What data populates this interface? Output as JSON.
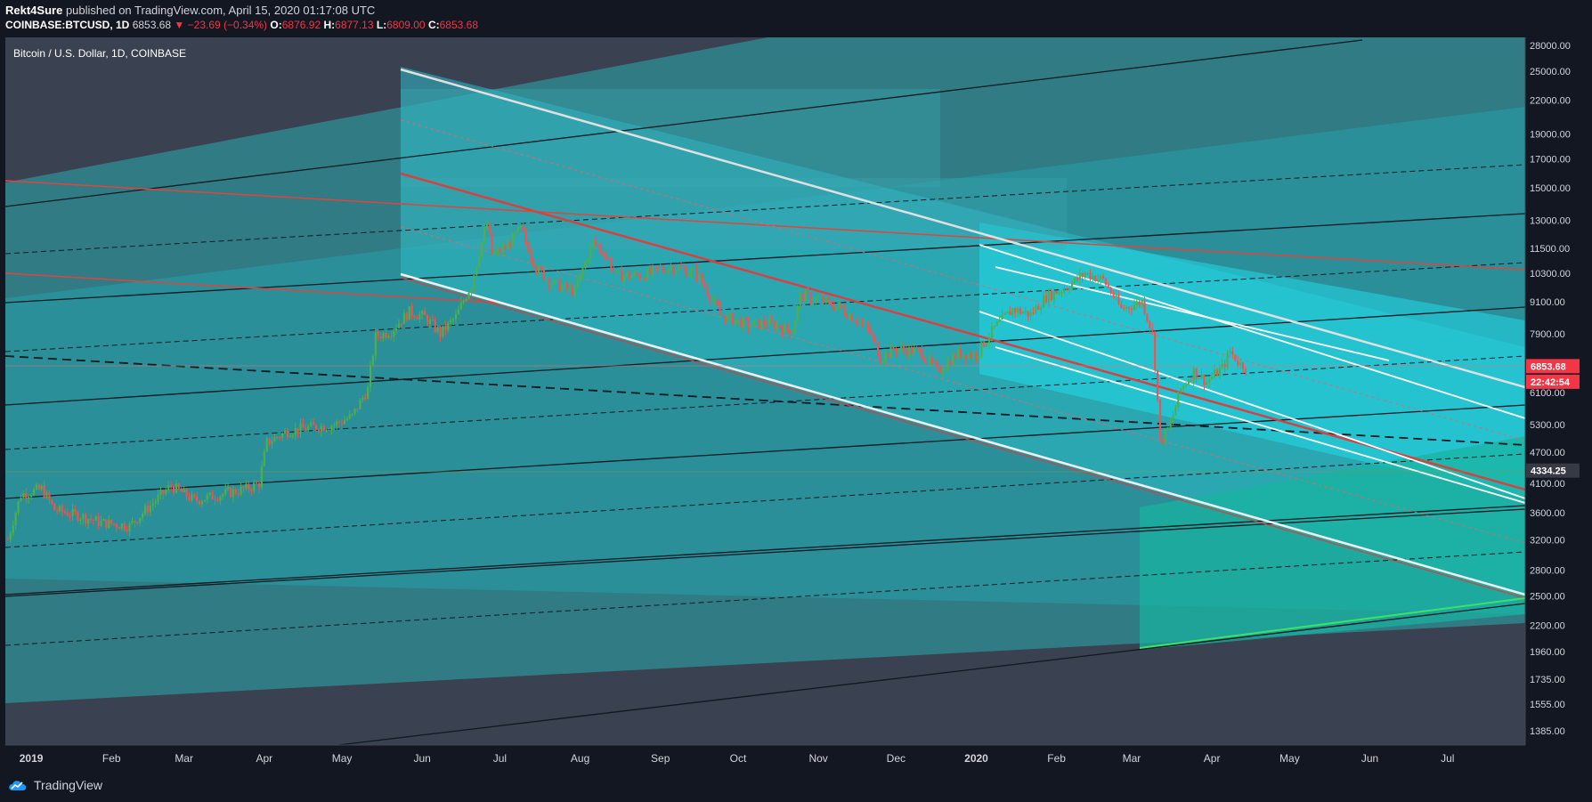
{
  "header": {
    "author": "Rekt4Sure",
    "published_text": "published on TradingView.com, April 15, 2020 01:17:08 UTC",
    "symbol": "COINBASE:BTCUSD, 1D",
    "last": "6853.68",
    "change": "−23.69 (−0.34%)",
    "o_label": "O:",
    "o": "6876.92",
    "h_label": "H:",
    "h": "6877.13",
    "l_label": "L:",
    "l": "6809.00",
    "c_label": "C:",
    "c": "6853.68"
  },
  "footer": {
    "brand": "TradingView"
  },
  "chart_data": {
    "type": "candlestick",
    "title": "Bitcoin / U.S. Dollar, 1D, COINBASE",
    "y_scale": "log",
    "ylim": [
      1300,
      29000
    ],
    "xlim": [
      "2018-12-22",
      "2020-07-31"
    ],
    "y_ticks": [
      28000,
      25000,
      22000,
      19000,
      17000,
      15000,
      13000,
      11500,
      10300,
      9100,
      7900,
      6100,
      5300,
      4700,
      4100,
      3600,
      3200,
      2800,
      2500,
      2200,
      1960,
      1735,
      1555,
      1385
    ],
    "y_tick_labels": [
      "28000.00",
      "25000.00",
      "22000.00",
      "19000.00",
      "17000.00",
      "15000.00",
      "13000.00",
      "11500.00",
      "10300.00",
      "9100.00",
      "7900.00",
      "6100.00",
      "5300.00",
      "4700.00",
      "4100.00",
      "3600.00",
      "3200.00",
      "2800.00",
      "2500.00",
      "2200.00",
      "1960.00",
      "1735.00",
      "1555.00",
      "1385.00"
    ],
    "x_ticks": [
      {
        "label": "2019",
        "date": "2019-01-01"
      },
      {
        "label": "Feb",
        "date": "2019-02-01"
      },
      {
        "label": "Mar",
        "date": "2019-03-01"
      },
      {
        "label": "Apr",
        "date": "2019-04-01"
      },
      {
        "label": "May",
        "date": "2019-05-01"
      },
      {
        "label": "Jun",
        "date": "2019-06-01"
      },
      {
        "label": "Jul",
        "date": "2019-07-01"
      },
      {
        "label": "Aug",
        "date": "2019-08-01"
      },
      {
        "label": "Sep",
        "date": "2019-09-01"
      },
      {
        "label": "Oct",
        "date": "2019-10-01"
      },
      {
        "label": "Nov",
        "date": "2019-11-01"
      },
      {
        "label": "Dec",
        "date": "2019-12-01"
      },
      {
        "label": "2020",
        "date": "2020-01-01"
      },
      {
        "label": "Feb",
        "date": "2020-02-01"
      },
      {
        "label": "Mar",
        "date": "2020-03-01"
      },
      {
        "label": "Apr",
        "date": "2020-04-01"
      },
      {
        "label": "May",
        "date": "2020-05-01"
      },
      {
        "label": "Jun",
        "date": "2020-06-01"
      },
      {
        "label": "Jul",
        "date": "2020-07-01"
      }
    ],
    "price_labels": [
      {
        "value": 6853.68,
        "text": "6853.68",
        "color": "#f23645"
      },
      {
        "value": 6400,
        "text": "22:42:54",
        "color": "#f23645"
      },
      {
        "value": 4334.25,
        "text": "4334.25",
        "color": "#363a45"
      }
    ],
    "close_series": [
      [
        "2018-12-23",
        3200
      ],
      [
        "2018-12-28",
        3900
      ],
      [
        "2019-01-05",
        4000
      ],
      [
        "2019-01-10",
        3650
      ],
      [
        "2019-01-20",
        3550
      ],
      [
        "2019-01-28",
        3450
      ],
      [
        "2019-02-08",
        3400
      ],
      [
        "2019-02-18",
        3800
      ],
      [
        "2019-02-24",
        4050
      ],
      [
        "2019-03-05",
        3800
      ],
      [
        "2019-03-15",
        3900
      ],
      [
        "2019-03-25",
        4000
      ],
      [
        "2019-03-30",
        4100
      ],
      [
        "2019-04-02",
        4900
      ],
      [
        "2019-04-10",
        5150
      ],
      [
        "2019-04-20",
        5250
      ],
      [
        "2019-04-28",
        5300
      ],
      [
        "2019-05-05",
        5500
      ],
      [
        "2019-05-11",
        6200
      ],
      [
        "2019-05-14",
        7800
      ],
      [
        "2019-05-20",
        8000
      ],
      [
        "2019-05-27",
        8700
      ],
      [
        "2019-06-02",
        8500
      ],
      [
        "2019-06-08",
        7900
      ],
      [
        "2019-06-14",
        8500
      ],
      [
        "2019-06-20",
        9800
      ],
      [
        "2019-06-26",
        12800
      ],
      [
        "2019-06-28",
        11200
      ],
      [
        "2019-07-03",
        11500
      ],
      [
        "2019-07-09",
        12500
      ],
      [
        "2019-07-15",
        10500
      ],
      [
        "2019-07-22",
        9800
      ],
      [
        "2019-07-30",
        9500
      ],
      [
        "2019-08-06",
        11800
      ],
      [
        "2019-08-10",
        11300
      ],
      [
        "2019-08-15",
        10200
      ],
      [
        "2019-08-25",
        10200
      ],
      [
        "2019-09-05",
        10600
      ],
      [
        "2019-09-15",
        10300
      ],
      [
        "2019-09-24",
        8600
      ],
      [
        "2019-10-05",
        8200
      ],
      [
        "2019-10-12",
        8300
      ],
      [
        "2019-10-22",
        8000
      ],
      [
        "2019-10-25",
        9300
      ],
      [
        "2019-11-01",
        9200
      ],
      [
        "2019-11-10",
        8800
      ],
      [
        "2019-11-20",
        8100
      ],
      [
        "2019-11-25",
        7100
      ],
      [
        "2019-12-01",
        7400
      ],
      [
        "2019-12-10",
        7300
      ],
      [
        "2019-12-17",
        6700
      ],
      [
        "2019-12-25",
        7250
      ],
      [
        "2020-01-01",
        7200
      ],
      [
        "2020-01-08",
        8100
      ],
      [
        "2020-01-15",
        8800
      ],
      [
        "2020-01-22",
        8600
      ],
      [
        "2020-01-28",
        9300
      ],
      [
        "2020-02-05",
        9700
      ],
      [
        "2020-02-12",
        10300
      ],
      [
        "2020-02-19",
        10000
      ],
      [
        "2020-02-26",
        8800
      ],
      [
        "2020-03-05",
        9100
      ],
      [
        "2020-03-09",
        7900
      ],
      [
        "2020-03-12",
        4900
      ],
      [
        "2020-03-16",
        5300
      ],
      [
        "2020-03-20",
        6200
      ],
      [
        "2020-03-25",
        6700
      ],
      [
        "2020-03-30",
        6400
      ],
      [
        "2020-04-05",
        6800
      ],
      [
        "2020-04-08",
        7300
      ],
      [
        "2020-04-12",
        6900
      ],
      [
        "2020-04-14",
        6853.68
      ]
    ]
  }
}
